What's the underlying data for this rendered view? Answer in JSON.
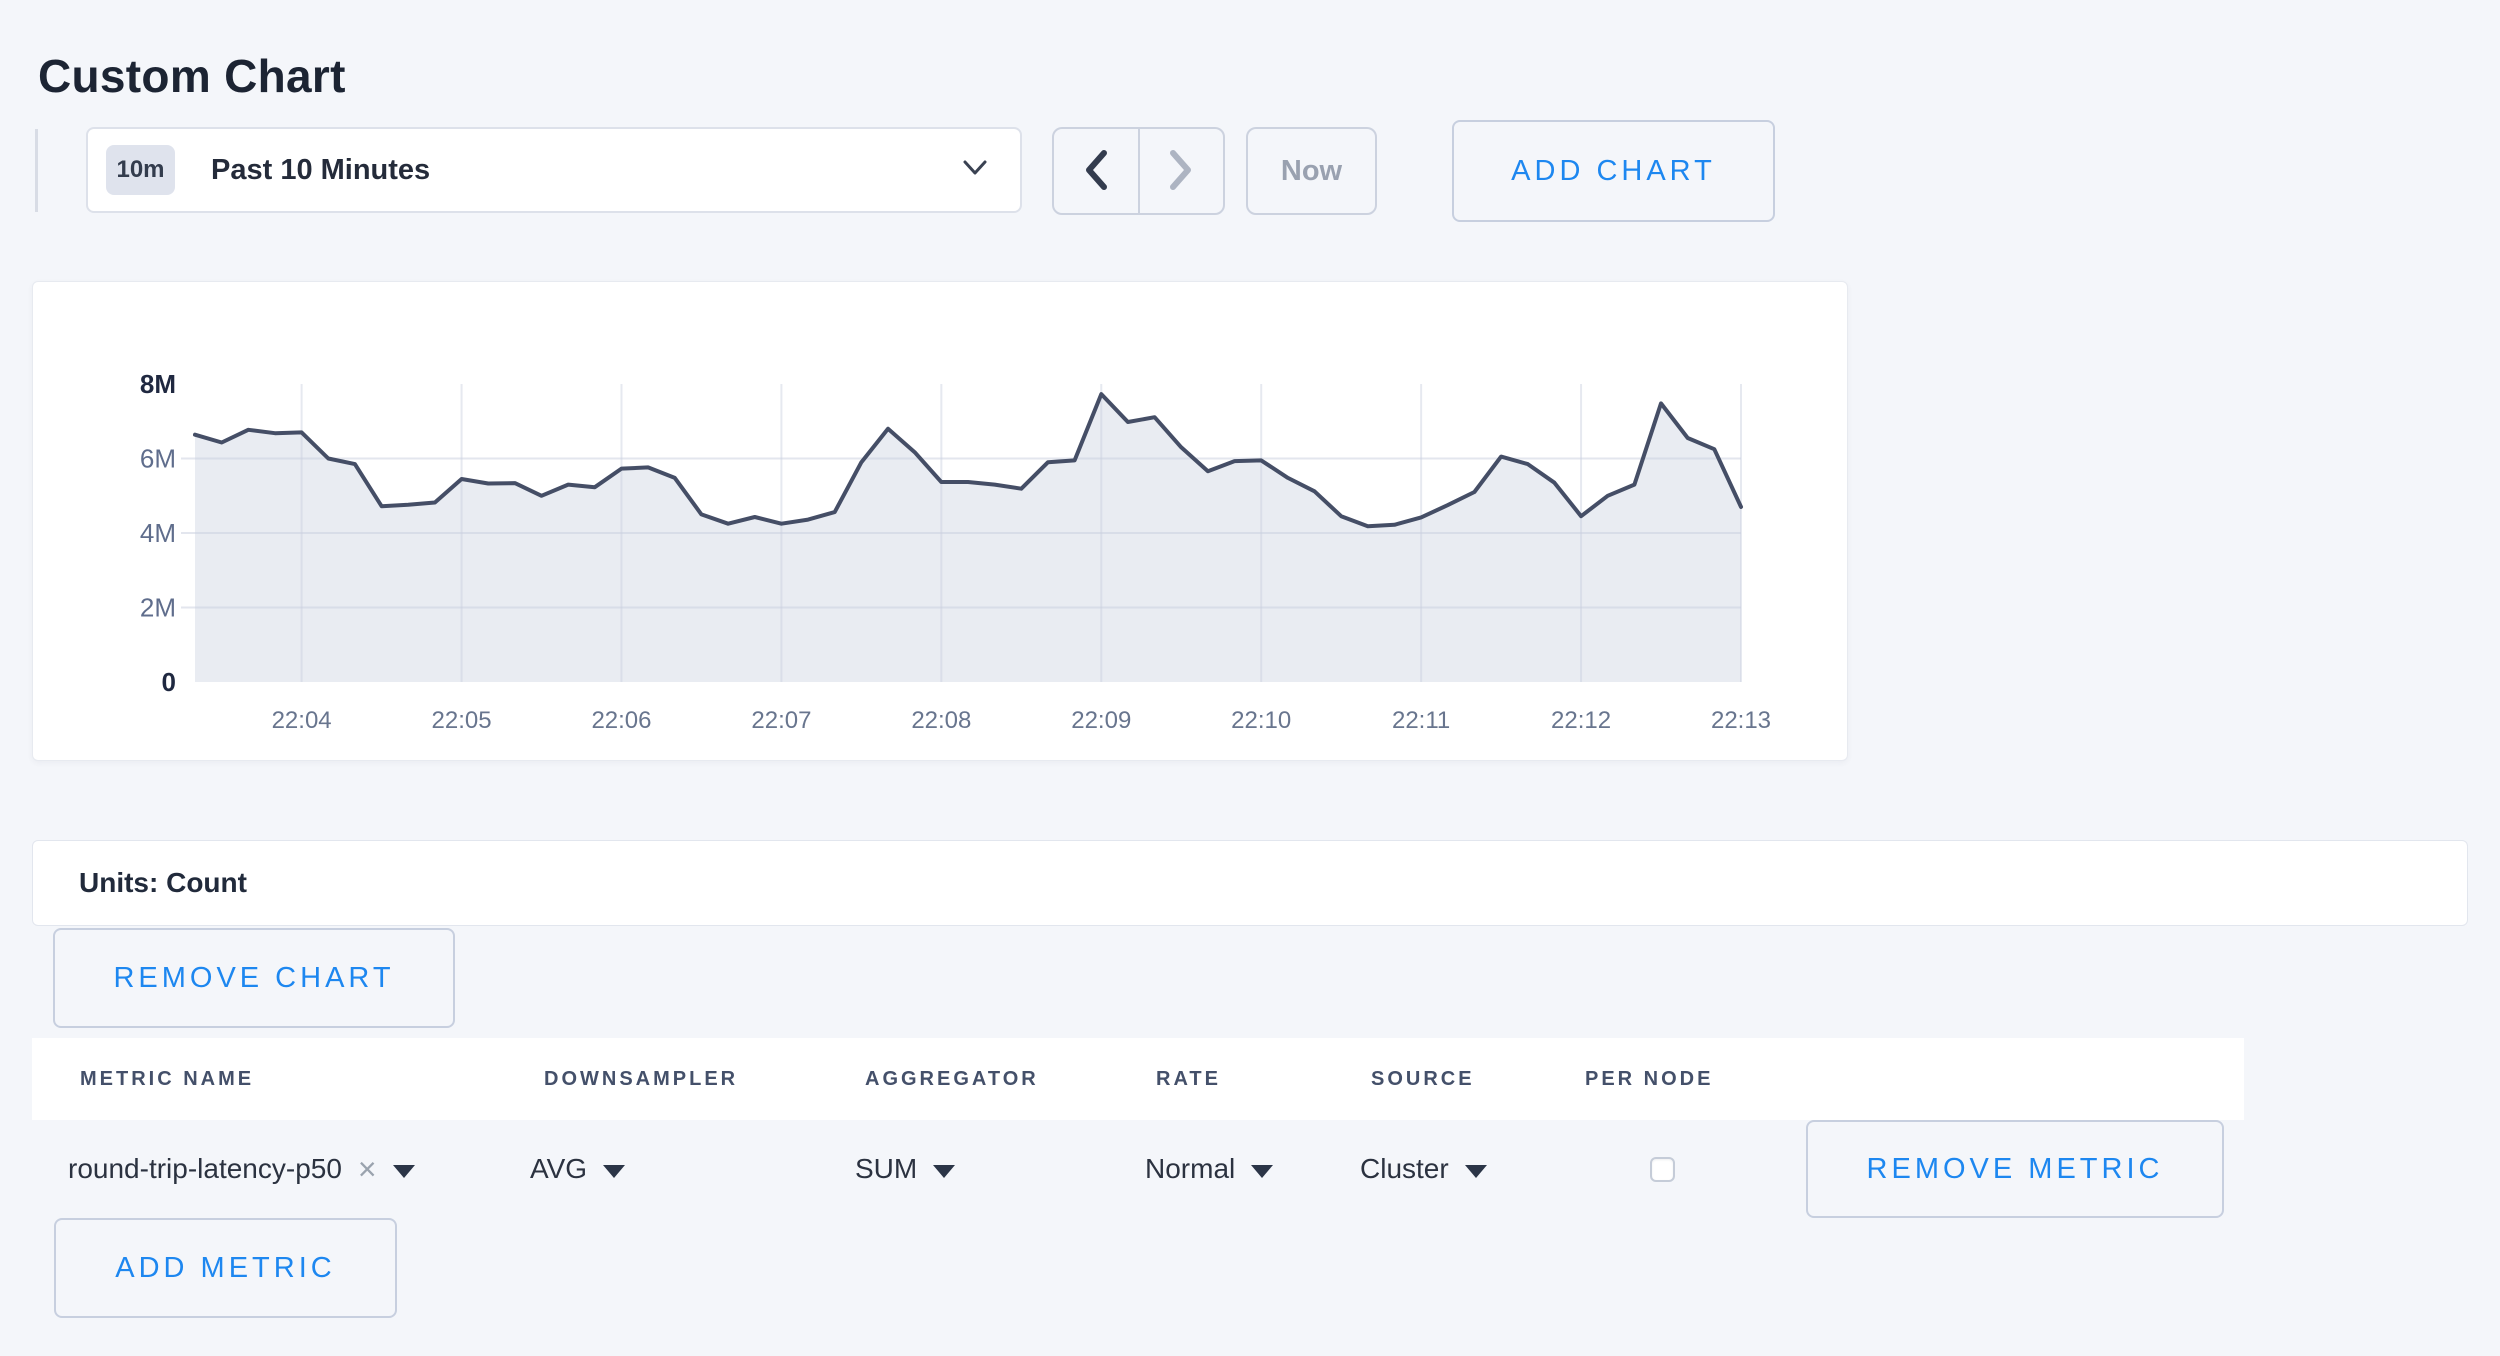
{
  "page": {
    "title": "Custom Chart"
  },
  "colors": {
    "accent_blue": "#1d87f0",
    "page_bg": "#f4f6fa",
    "line": "#454e66",
    "area_fill": "#e9ecf2",
    "grid": "#c7cedd",
    "axis_emphasis": "#1f2840",
    "axis_minor": "#5f6d8c",
    "x_label": "#68758e"
  },
  "icons": {
    "time_dropdown": "chevron-down",
    "prev": "chevron-left",
    "next": "chevron-right",
    "units_dropdown": "chevron-down",
    "cell_dropdown": "caret-down",
    "remove_x": "×"
  },
  "toolbar": {
    "time_badge": "10m",
    "time_label": "Past 10 Minutes",
    "now_label": "Now",
    "add_chart_label": "ADD CHART"
  },
  "units_bar": {
    "label": "Units: Count"
  },
  "buttons": {
    "remove_chart": "REMOVE CHART",
    "remove_metric": "REMOVE METRIC",
    "add_metric": "ADD METRIC"
  },
  "metrics_table": {
    "columns": [
      "METRIC NAME",
      "DOWNSAMPLER",
      "AGGREGATOR",
      "RATE",
      "SOURCE",
      "PER NODE"
    ],
    "rows": [
      {
        "metric_name": "round-trip-latency-p50",
        "downsampler": "AVG",
        "aggregator": "SUM",
        "rate": "Normal",
        "source": "Cluster",
        "per_node_checked": false
      }
    ]
  },
  "chart_data": {
    "type": "area",
    "title": "",
    "unit": "count",
    "series_name": "round-trip-latency-p50",
    "start_time": "22:03:20",
    "interval_seconds": 10,
    "values_millions": [
      6.64,
      6.43,
      6.77,
      6.68,
      6.7,
      6.0,
      5.85,
      4.72,
      4.76,
      4.82,
      5.45,
      5.33,
      5.34,
      5.0,
      5.3,
      5.23,
      5.73,
      5.76,
      5.48,
      4.5,
      4.25,
      4.43,
      4.25,
      4.36,
      4.56,
      5.9,
      6.8,
      6.17,
      5.37,
      5.37,
      5.3,
      5.19,
      5.9,
      5.95,
      7.73,
      6.98,
      7.11,
      6.3,
      5.66,
      5.93,
      5.95,
      5.48,
      5.12,
      4.45,
      4.18,
      4.22,
      4.42,
      4.75,
      5.1,
      6.05,
      5.85,
      5.35,
      4.45,
      5.0,
      5.3,
      7.48,
      6.55,
      6.25,
      4.7
    ],
    "ylim_millions": [
      0,
      8
    ],
    "y_ticks": [
      {
        "label": "0",
        "value_m": 0,
        "emphasis": true
      },
      {
        "label": "2M",
        "value_m": 2,
        "emphasis": false
      },
      {
        "label": "4M",
        "value_m": 4,
        "emphasis": false
      },
      {
        "label": "6M",
        "value_m": 6,
        "emphasis": false
      },
      {
        "label": "8M",
        "value_m": 8,
        "emphasis": true
      }
    ],
    "x_ticks": [
      "22:04",
      "22:05",
      "22:06",
      "22:07",
      "22:08",
      "22:09",
      "22:10",
      "22:11",
      "22:12",
      "22:13"
    ],
    "grid": true,
    "legend": false
  }
}
